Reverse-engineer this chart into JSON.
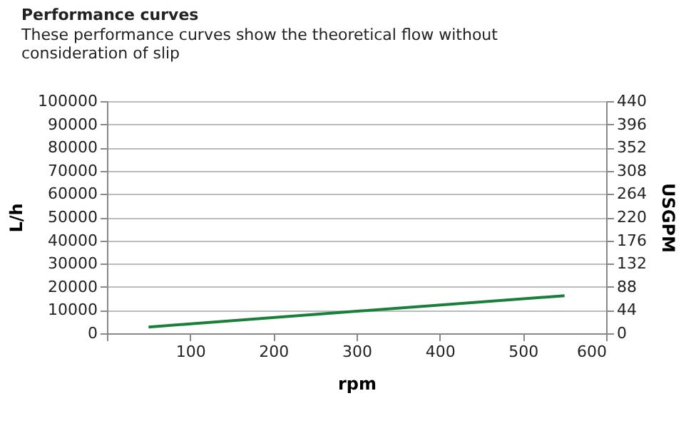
{
  "chart_data": {
    "type": "line",
    "title": "Performance curves",
    "subtitle": "These performance curves show the theoretical flow without consideration of slip",
    "xlabel": "rpm",
    "ylabel": "L/h",
    "y2label": "USGPM",
    "series": [
      {
        "color": "#1a7f3a",
        "x": [
          50,
          300,
          550
        ],
        "values": [
          2700,
          9500,
          16200
        ]
      }
    ],
    "xlim": [
      0,
      600
    ],
    "xticks": [
      {
        "value": 0,
        "label": null
      },
      100,
      200,
      300,
      400,
      500,
      600
    ],
    "ylim": [
      0,
      100000
    ],
    "yticks": [
      0,
      10000,
      20000,
      30000,
      40000,
      50000,
      60000,
      70000,
      80000,
      90000,
      100000
    ],
    "y2lim": [
      0,
      440
    ],
    "y2ticks": [
      0,
      44,
      88,
      132,
      176,
      220,
      264,
      308,
      352,
      396,
      440
    ],
    "grid": "y",
    "marker": "none",
    "line_style": "solid"
  }
}
